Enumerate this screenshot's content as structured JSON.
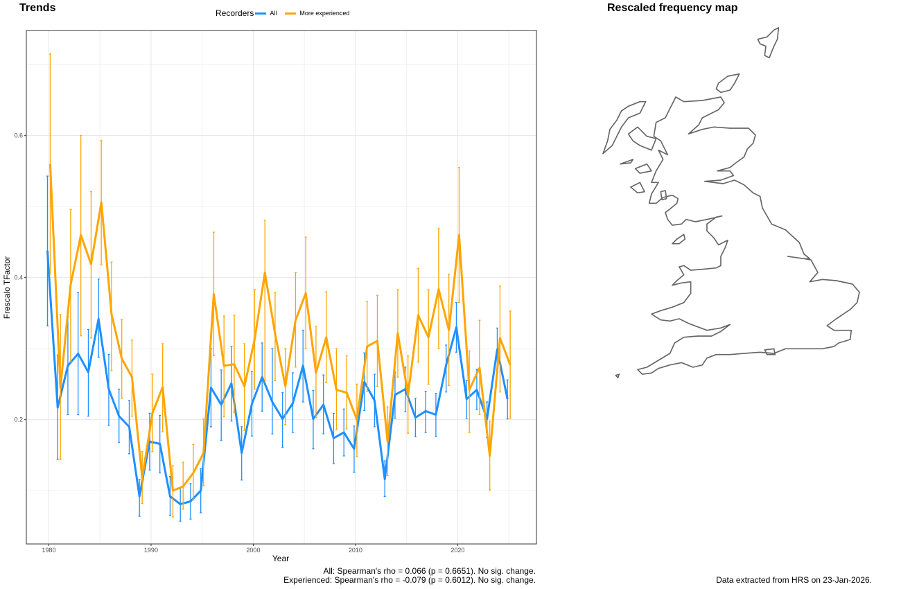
{
  "left_panel": {
    "title": "Trends"
  },
  "right_panel": {
    "title": "Rescaled frequency map"
  },
  "legend": {
    "title": "Recorders",
    "items": [
      {
        "label": "All",
        "color": "#1E90FF"
      },
      {
        "label": "More experienced",
        "color": "#FFA500"
      }
    ]
  },
  "notes": {
    "all": "All: Spearman's rho = 0.066 (p = 0.6651). No sig. change.",
    "experienced": "Experienced: Spearman's rho = -0.079 (p = 0.6012). No sig. change.",
    "source": "Data extracted from HRS on 23-Jan-2026."
  },
  "chart_data": {
    "type": "line",
    "xlabel": "Year",
    "ylabel": "Frescalo TFactor",
    "xlim": [
      1977.8,
      2027.7
    ],
    "ylim": [
      0.025,
      0.748
    ],
    "x_ticks": [
      1980,
      1990,
      2000,
      2010,
      2020
    ],
    "y_ticks": [
      0.2,
      0.4,
      0.6
    ],
    "grid": true,
    "legend_position": "top",
    "x": [
      1980,
      1981,
      1982,
      1983,
      1984,
      1985,
      1986,
      1987,
      1988,
      1989,
      1990,
      1991,
      1992,
      1993,
      1994,
      1995,
      1996,
      1997,
      1998,
      1999,
      2000,
      2001,
      2002,
      2003,
      2004,
      2005,
      2006,
      2007,
      2008,
      2009,
      2010,
      2011,
      2012,
      2013,
      2014,
      2015,
      2016,
      2017,
      2018,
      2019,
      2020,
      2021,
      2022,
      2023,
      2024,
      2025
    ],
    "series": [
      {
        "name": "All",
        "color": "#1E90FF",
        "values": [
          0.438,
          0.217,
          0.276,
          0.293,
          0.267,
          0.342,
          0.243,
          0.205,
          0.19,
          0.092,
          0.169,
          0.166,
          0.092,
          0.081,
          0.085,
          0.1,
          0.245,
          0.221,
          0.251,
          0.153,
          0.222,
          0.26,
          0.225,
          0.201,
          0.223,
          0.276,
          0.201,
          0.221,
          0.174,
          0.182,
          0.159,
          0.253,
          0.227,
          0.116,
          0.235,
          0.243,
          0.203,
          0.212,
          0.207,
          0.277,
          0.33,
          0.229,
          0.242,
          0.201,
          0.299,
          0.229
        ],
        "lower": [
          0.332,
          0.144,
          0.207,
          0.207,
          0.205,
          0.288,
          0.192,
          0.168,
          0.152,
          0.064,
          0.129,
          0.125,
          0.065,
          0.057,
          0.06,
          0.069,
          0.19,
          0.171,
          0.198,
          0.115,
          0.177,
          0.212,
          0.18,
          0.161,
          0.182,
          0.225,
          0.159,
          0.18,
          0.138,
          0.149,
          0.126,
          0.213,
          0.19,
          0.092,
          0.202,
          0.211,
          0.176,
          0.182,
          0.176,
          0.239,
          0.295,
          0.202,
          0.214,
          0.175,
          0.267,
          0.201
        ],
        "upper": [
          0.543,
          0.291,
          0.345,
          0.379,
          0.327,
          0.398,
          0.292,
          0.243,
          0.227,
          0.116,
          0.209,
          0.206,
          0.12,
          0.104,
          0.11,
          0.131,
          0.3,
          0.27,
          0.303,
          0.19,
          0.268,
          0.308,
          0.3,
          0.238,
          0.266,
          0.326,
          0.241,
          0.263,
          0.209,
          0.215,
          0.191,
          0.294,
          0.264,
          0.142,
          0.267,
          0.274,
          0.23,
          0.24,
          0.237,
          0.305,
          0.365,
          0.255,
          0.271,
          0.225,
          0.329,
          0.256
        ]
      },
      {
        "name": "More experienced",
        "color": "#FFA500",
        "values": [
          0.56,
          0.245,
          0.39,
          0.46,
          0.419,
          0.506,
          0.349,
          0.286,
          0.26,
          0.118,
          0.209,
          0.246,
          0.1,
          0.106,
          0.125,
          0.153,
          0.377,
          0.276,
          0.278,
          0.247,
          0.313,
          0.407,
          0.321,
          0.247,
          0.34,
          0.378,
          0.266,
          0.316,
          0.242,
          0.238,
          0.2,
          0.303,
          0.311,
          0.169,
          0.322,
          0.235,
          0.347,
          0.316,
          0.384,
          0.326,
          0.46,
          0.242,
          0.273,
          0.149,
          0.315,
          0.277
        ],
        "lower": [
          0.405,
          0.144,
          0.282,
          0.318,
          0.315,
          0.418,
          0.269,
          0.23,
          0.205,
          0.082,
          0.155,
          0.183,
          0.063,
          0.074,
          0.087,
          0.107,
          0.29,
          0.204,
          0.21,
          0.185,
          0.243,
          0.255,
          0.255,
          0.193,
          0.274,
          0.3,
          0.203,
          0.252,
          0.186,
          0.187,
          0.148,
          0.24,
          0.247,
          0.121,
          0.26,
          0.181,
          0.281,
          0.25,
          0.3,
          0.248,
          0.365,
          0.182,
          0.207,
          0.101,
          0.239,
          0.202
        ],
        "upper": [
          0.715,
          0.348,
          0.496,
          0.6,
          0.521,
          0.593,
          0.422,
          0.341,
          0.312,
          0.155,
          0.264,
          0.307,
          0.135,
          0.14,
          0.165,
          0.201,
          0.464,
          0.346,
          0.347,
          0.307,
          0.383,
          0.481,
          0.379,
          0.3,
          0.407,
          0.457,
          0.331,
          0.38,
          0.3,
          0.29,
          0.25,
          0.366,
          0.375,
          0.218,
          0.383,
          0.29,
          0.413,
          0.383,
          0.469,
          0.405,
          0.555,
          0.297,
          0.34,
          0.198,
          0.388,
          0.353
        ]
      }
    ]
  }
}
